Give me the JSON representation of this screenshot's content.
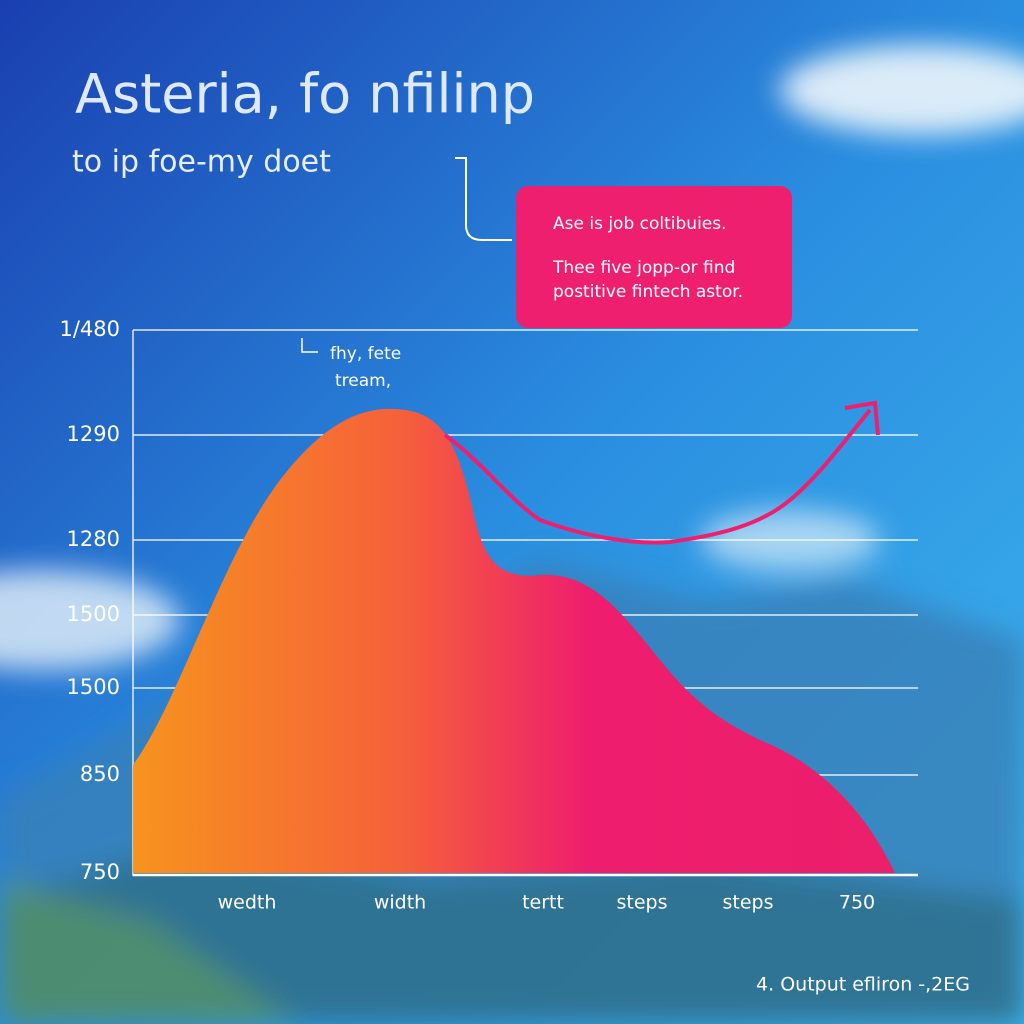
{
  "header": {
    "title": "Asteria, fo nfilinp",
    "subtitle": "to ip foe-my doet"
  },
  "callout": {
    "lines": [
      "Ase is job coltibuies.",
      "Thee five jopp-or find",
      "postitive fintech astor."
    ]
  },
  "annotation": {
    "lines": [
      "fhy, fete",
      "tream,"
    ]
  },
  "y_labels": [
    "1/480",
    "1290",
    "1280",
    "1500",
    "1500",
    "850",
    "750"
  ],
  "x_labels": [
    "wedth",
    "width",
    "tertt",
    "steps",
    "steps",
    "750"
  ],
  "footer": "4. Output efliron -,2EG"
}
